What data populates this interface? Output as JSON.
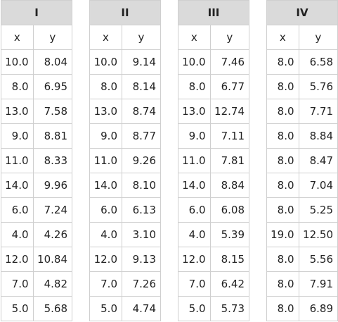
{
  "tables": [
    {
      "title": "I",
      "headers": [
        "x",
        "y"
      ],
      "rows": [
        [
          "10.0",
          "8.04"
        ],
        [
          "8.0",
          "6.95"
        ],
        [
          "13.0",
          "7.58"
        ],
        [
          "9.0",
          "8.81"
        ],
        [
          "11.0",
          "8.33"
        ],
        [
          "14.0",
          "9.96"
        ],
        [
          "6.0",
          "7.24"
        ],
        [
          "4.0",
          "4.26"
        ],
        [
          "12.0",
          "10.84"
        ],
        [
          "7.0",
          "4.82"
        ],
        [
          "5.0",
          "5.68"
        ]
      ]
    },
    {
      "title": "II",
      "headers": [
        "x",
        "y"
      ],
      "rows": [
        [
          "10.0",
          "9.14"
        ],
        [
          "8.0",
          "8.14"
        ],
        [
          "13.0",
          "8.74"
        ],
        [
          "9.0",
          "8.77"
        ],
        [
          "11.0",
          "9.26"
        ],
        [
          "14.0",
          "8.10"
        ],
        [
          "6.0",
          "6.13"
        ],
        [
          "4.0",
          "3.10"
        ],
        [
          "12.0",
          "9.13"
        ],
        [
          "7.0",
          "7.26"
        ],
        [
          "5.0",
          "4.74"
        ]
      ]
    },
    {
      "title": "III",
      "headers": [
        "x",
        "y"
      ],
      "rows": [
        [
          "10.0",
          "7.46"
        ],
        [
          "8.0",
          "6.77"
        ],
        [
          "13.0",
          "12.74"
        ],
        [
          "9.0",
          "7.11"
        ],
        [
          "11.0",
          "7.81"
        ],
        [
          "14.0",
          "8.84"
        ],
        [
          "6.0",
          "6.08"
        ],
        [
          "4.0",
          "5.39"
        ],
        [
          "12.0",
          "8.15"
        ],
        [
          "7.0",
          "6.42"
        ],
        [
          "5.0",
          "5.73"
        ]
      ]
    },
    {
      "title": "IV",
      "headers": [
        "x",
        "y"
      ],
      "rows": [
        [
          "8.0",
          "6.58"
        ],
        [
          "8.0",
          "5.76"
        ],
        [
          "8.0",
          "7.71"
        ],
        [
          "8.0",
          "8.84"
        ],
        [
          "8.0",
          "8.47"
        ],
        [
          "8.0",
          "7.04"
        ],
        [
          "8.0",
          "5.25"
        ],
        [
          "19.0",
          "12.50"
        ],
        [
          "8.0",
          "5.56"
        ],
        [
          "8.0",
          "7.91"
        ],
        [
          "8.0",
          "6.89"
        ]
      ]
    }
  ]
}
